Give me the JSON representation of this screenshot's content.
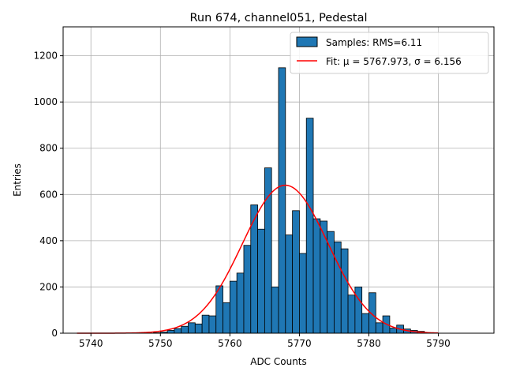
{
  "chart_data": {
    "type": "bar",
    "title": "Run 674, channel051, Pedestal",
    "xlabel": "ADC Counts",
    "ylabel": "Entries",
    "xlim": [
      5736,
      5798
    ],
    "ylim": [
      0,
      1325
    ],
    "grid": true,
    "legend_position": "top-right",
    "x_ticks": [
      5740,
      5750,
      5760,
      5770,
      5780,
      5790
    ],
    "y_ticks": [
      0,
      200,
      400,
      600,
      800,
      1000,
      1200
    ],
    "histogram": {
      "name": "Samples: RMS=6.11",
      "color": "#1f77b4",
      "edge_color": "#000000",
      "bin_width": 1,
      "bin_starts": [
        5749,
        5750,
        5751,
        5752,
        5753,
        5754,
        5755,
        5756,
        5757,
        5758,
        5759,
        5760,
        5761,
        5762,
        5763,
        5764,
        5765,
        5766,
        5767,
        5768,
        5769,
        5770,
        5771,
        5772,
        5773,
        5774,
        5775,
        5776,
        5777,
        5778,
        5779,
        5780,
        5781,
        5782,
        5783,
        5784,
        5785,
        5786,
        5787
      ],
      "values": [
        2,
        5,
        12,
        20,
        30,
        45,
        40,
        78,
        75,
        205,
        132,
        225,
        260,
        380,
        555,
        450,
        715,
        200,
        1148,
        425,
        530,
        345,
        930,
        495,
        485,
        440,
        395,
        365,
        165,
        200,
        85,
        175,
        45,
        75,
        22,
        35,
        18,
        12,
        8
      ]
    },
    "fit": {
      "name": "Fit: μ = 5767.973, σ = 6.156",
      "color": "#ff0000",
      "mu": 5767.973,
      "sigma": 6.156,
      "amplitude": 640,
      "x_range": [
        5738,
        5790
      ]
    }
  }
}
